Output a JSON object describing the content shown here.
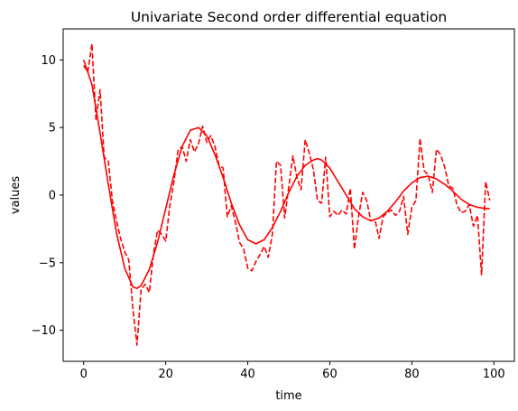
{
  "chart_data": {
    "type": "line",
    "title": "Univariate Second order differential equation",
    "xlabel": "time",
    "ylabel": "values",
    "xlim": [
      -5,
      105
    ],
    "ylim": [
      -12.3,
      12.3
    ],
    "xticks": [
      0,
      20,
      40,
      60,
      80,
      100
    ],
    "yticks": [
      -10,
      -5,
      0,
      5,
      10
    ],
    "ytick_labels": [
      "−10",
      "−5",
      "0",
      "5",
      "10"
    ],
    "grid": false,
    "legend": "none",
    "series": [
      {
        "style": "solid",
        "color": "#ff0000",
        "x": [
          0,
          2,
          4,
          6,
          8,
          10,
          12,
          13,
          14,
          16,
          18,
          20,
          22,
          24,
          26,
          28,
          30,
          32,
          34,
          36,
          38,
          40,
          42,
          44,
          46,
          48,
          50,
          52,
          54,
          56,
          57,
          58,
          60,
          62,
          64,
          66,
          68,
          70,
          72,
          74,
          76,
          78,
          80,
          82,
          84,
          86,
          88,
          90,
          92,
          94,
          96,
          98,
          99
        ],
        "y": [
          10.0,
          8.2,
          4.6,
          0.8,
          -2.8,
          -5.4,
          -6.8,
          -6.9,
          -6.7,
          -5.5,
          -3.5,
          -1.0,
          1.5,
          3.6,
          4.8,
          5.0,
          4.4,
          3.0,
          1.3,
          -0.6,
          -2.2,
          -3.3,
          -3.6,
          -3.3,
          -2.4,
          -1.2,
          0.2,
          1.4,
          2.2,
          2.6,
          2.7,
          2.6,
          2.0,
          1.0,
          0.0,
          -1.0,
          -1.6,
          -1.9,
          -1.7,
          -1.2,
          -0.5,
          0.3,
          0.9,
          1.3,
          1.4,
          1.2,
          0.8,
          0.3,
          -0.3,
          -0.7,
          -0.9,
          -1.0,
          -1.0
        ]
      },
      {
        "style": "dashed",
        "color": "#ff0000",
        "x": [
          0,
          1,
          2,
          3,
          4,
          5,
          6,
          7,
          8,
          9,
          10,
          11,
          12,
          13,
          14,
          15,
          16,
          17,
          18,
          19,
          20,
          21,
          22,
          23,
          24,
          25,
          26,
          27,
          28,
          29,
          30,
          31,
          32,
          33,
          34,
          35,
          36,
          37,
          38,
          39,
          40,
          41,
          42,
          43,
          44,
          45,
          46,
          47,
          48,
          49,
          50,
          51,
          52,
          53,
          54,
          55,
          56,
          57,
          58,
          59,
          60,
          61,
          62,
          63,
          64,
          65,
          66,
          67,
          68,
          69,
          70,
          71,
          72,
          73,
          74,
          75,
          76,
          77,
          78,
          79,
          80,
          81,
          82,
          83,
          84,
          85,
          86,
          87,
          88,
          89,
          90,
          91,
          92,
          93,
          94,
          95,
          96,
          97,
          98,
          99
        ],
        "y": [
          9.6,
          9.1,
          11.2,
          5.6,
          7.8,
          2.8,
          2.5,
          -0.4,
          -1.9,
          -3.2,
          -4.2,
          -4.8,
          -8.4,
          -11.1,
          -7.0,
          -6.6,
          -7.2,
          -4.4,
          -2.6,
          -2.9,
          -3.4,
          -0.8,
          1.0,
          3.3,
          3.6,
          2.5,
          4.1,
          3.2,
          3.8,
          5.1,
          3.9,
          4.4,
          3.6,
          2.2,
          2.0,
          -1.6,
          -0.8,
          -2.0,
          -3.5,
          -4.0,
          -5.4,
          -5.6,
          -4.9,
          -4.4,
          -3.8,
          -4.6,
          -2.9,
          2.5,
          2.2,
          -1.7,
          0.6,
          2.9,
          1.3,
          0.4,
          4.1,
          3.1,
          1.9,
          -0.4,
          -0.6,
          2.8,
          -1.6,
          -1.2,
          -1.5,
          -1.1,
          -1.4,
          0.5,
          -4.0,
          -1.6,
          0.2,
          -0.4,
          -1.9,
          -1.8,
          -3.2,
          -1.6,
          -1.3,
          -1.1,
          -1.5,
          -1.2,
          -0.1,
          -2.9,
          -0.9,
          -0.4,
          4.2,
          1.8,
          1.5,
          0.2,
          3.4,
          3.0,
          2.1,
          0.7,
          0.5,
          -0.7,
          -1.3,
          -1.2,
          -0.7,
          -2.3,
          -1.5,
          -5.9,
          1.0,
          -0.4
        ]
      }
    ]
  }
}
